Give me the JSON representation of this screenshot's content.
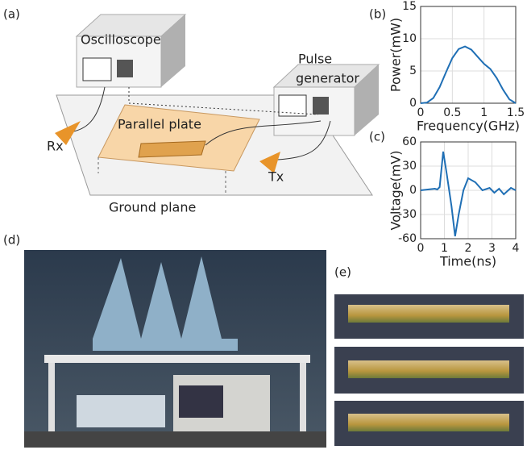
{
  "diagram": {
    "label": "(a)",
    "oscilloscope": "Oscilloscope",
    "pulse_line1": "Pulse",
    "pulse_line2": "generator",
    "parallel_plate": "Parallel plate",
    "rx": "Rx",
    "tx": "Tx",
    "ground_plane": "Ground plane"
  },
  "photos": {
    "d_label": "(d)",
    "e_label": "(e)"
  },
  "chart_data": [
    {
      "type": "line",
      "label": "(b)",
      "xlabel": "Frequency(GHz)",
      "ylabel": "Power(mW)",
      "color": "#1f6fb5",
      "grid": true,
      "x": [
        0,
        0.1,
        0.2,
        0.3,
        0.4,
        0.5,
        0.6,
        0.7,
        0.8,
        0.9,
        1.0,
        1.1,
        1.2,
        1.3,
        1.4,
        1.5
      ],
      "values": [
        0,
        0.1,
        0.8,
        2.5,
        4.8,
        7,
        8.4,
        8.8,
        8.3,
        7.2,
        6.1,
        5.3,
        3.9,
        2.1,
        0.6,
        0
      ],
      "xlim": [
        0,
        1.5
      ],
      "xticks": [
        0,
        0.5,
        1,
        1.5
      ],
      "ylim": [
        0,
        15
      ],
      "yticks": [
        0,
        5,
        10,
        15
      ]
    },
    {
      "type": "line",
      "label": "(c)",
      "xlabel": "Time(ns)",
      "ylabel": "Voltage(mV)",
      "color": "#1f6fb5",
      "grid": true,
      "x": [
        0,
        0.3,
        0.6,
        0.7,
        0.8,
        0.95,
        1.1,
        1.2,
        1.3,
        1.45,
        1.6,
        1.8,
        2.0,
        2.3,
        2.6,
        2.9,
        3.1,
        3.3,
        3.5,
        3.8,
        4.0
      ],
      "values": [
        0,
        1,
        2,
        1,
        4,
        48,
        20,
        0,
        -20,
        -57,
        -30,
        0,
        15,
        10,
        0,
        3,
        -3,
        2,
        -5,
        3,
        0
      ],
      "xlim": [
        0,
        4
      ],
      "xticks": [
        0,
        1,
        2,
        3,
        4
      ],
      "ylim": [
        -60,
        60
      ],
      "yticks": [
        -60,
        -30,
        0,
        30,
        60
      ]
    }
  ]
}
